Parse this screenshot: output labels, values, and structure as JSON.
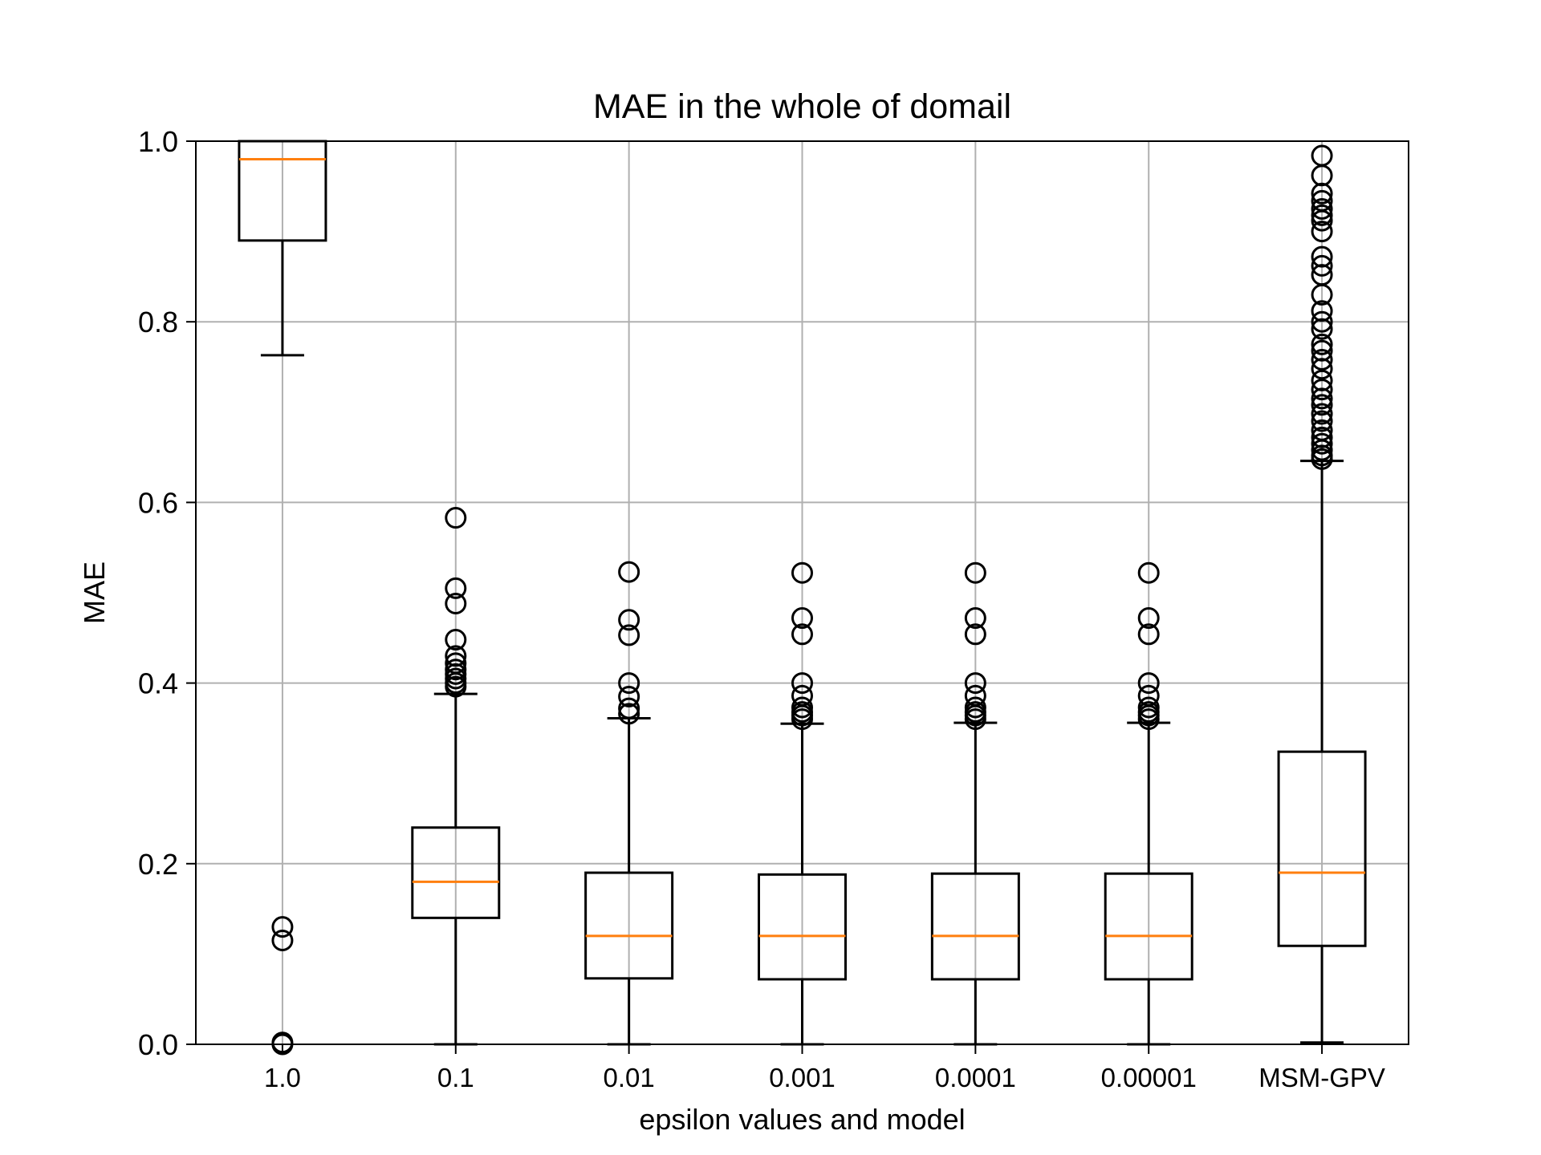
{
  "chart_data": {
    "type": "box",
    "title": "MAE in the whole of domail",
    "xlabel": "epsilon values and model",
    "ylabel": "MAE",
    "ylim": [
      0,
      1
    ],
    "yticks": [
      "0.0",
      "0.2",
      "0.4",
      "0.6",
      "0.8",
      "1.0"
    ],
    "grid": true,
    "categories": [
      "1.0",
      "0.1",
      "0.01",
      "0.001",
      "0.0001",
      "0.00001",
      "MSM-GPV"
    ],
    "boxes": [
      {
        "category": "1.0",
        "whisker_low": 0.763,
        "q1": 0.89,
        "median": 0.98,
        "q3": 1.0,
        "whisker_high": 1.0,
        "outliers": [
          0.13,
          0.115,
          0.002,
          0.0
        ]
      },
      {
        "category": "0.1",
        "whisker_low": 0.0,
        "q1": 0.14,
        "median": 0.18,
        "q3": 0.24,
        "whisker_high": 0.388,
        "outliers": [
          0.583,
          0.505,
          0.488,
          0.448,
          0.43,
          0.422,
          0.415,
          0.41,
          0.405,
          0.4,
          0.396
        ]
      },
      {
        "category": "0.01",
        "whisker_low": 0.0,
        "q1": 0.073,
        "median": 0.12,
        "q3": 0.19,
        "whisker_high": 0.361,
        "outliers": [
          0.523,
          0.47,
          0.453,
          0.4,
          0.385,
          0.372,
          0.366
        ]
      },
      {
        "category": "0.001",
        "whisker_low": 0.0,
        "q1": 0.072,
        "median": 0.12,
        "q3": 0.188,
        "whisker_high": 0.355,
        "outliers": [
          0.522,
          0.472,
          0.454,
          0.4,
          0.386,
          0.373,
          0.368,
          0.364,
          0.36
        ]
      },
      {
        "category": "0.0001",
        "whisker_low": 0.0,
        "q1": 0.072,
        "median": 0.12,
        "q3": 0.189,
        "whisker_high": 0.356,
        "outliers": [
          0.522,
          0.472,
          0.454,
          0.4,
          0.386,
          0.373,
          0.368,
          0.364,
          0.36
        ]
      },
      {
        "category": "0.00001",
        "whisker_low": 0.0,
        "q1": 0.072,
        "median": 0.12,
        "q3": 0.189,
        "whisker_high": 0.356,
        "outliers": [
          0.522,
          0.472,
          0.454,
          0.4,
          0.386,
          0.373,
          0.368,
          0.364,
          0.36
        ]
      },
      {
        "category": "MSM-GPV",
        "whisker_low": 0.002,
        "q1": 0.109,
        "median": 0.19,
        "q3": 0.324,
        "whisker_high": 0.646,
        "outliers": [
          0.984,
          0.962,
          0.942,
          0.934,
          0.925,
          0.918,
          0.912,
          0.9,
          0.872,
          0.862,
          0.852,
          0.83,
          0.812,
          0.8,
          0.792,
          0.775,
          0.768,
          0.758,
          0.748,
          0.735,
          0.725,
          0.715,
          0.708,
          0.698,
          0.69,
          0.68,
          0.672,
          0.665,
          0.658,
          0.652,
          0.648
        ]
      }
    ],
    "colors": {
      "median": "#ff7f0e",
      "box": "#000000",
      "grid": "#b0b0b0"
    }
  }
}
